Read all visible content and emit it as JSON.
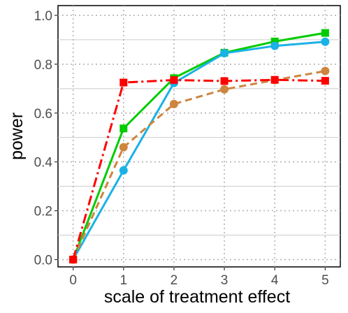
{
  "chart_data": {
    "type": "line",
    "title": "",
    "xlabel": "scale of treatment effect",
    "ylabel": "power",
    "x": [
      0,
      1,
      2,
      3,
      4,
      5
    ],
    "xlim": [
      -0.3,
      5.3
    ],
    "ylim": [
      -0.03,
      1.04
    ],
    "x_ticks": [
      "0",
      "1",
      "2",
      "3",
      "4",
      "5"
    ],
    "y_ticks": [
      "0.0",
      "0.2",
      "0.4",
      "0.6",
      "0.8",
      "1.0"
    ],
    "grid": true,
    "legend": "none",
    "series": [
      {
        "color": "#00cc00",
        "line_style": "solid",
        "marker": "square",
        "values": [
          0.0,
          0.537,
          0.743,
          0.847,
          0.893,
          0.928
        ]
      },
      {
        "color": "#1ab2e6",
        "line_style": "solid",
        "marker": "circle",
        "values": [
          0.0,
          0.365,
          0.723,
          0.845,
          0.875,
          0.892
        ]
      },
      {
        "color": "#cd853f",
        "line_style": "dashed",
        "marker": "circle",
        "values": [
          0.0,
          0.46,
          0.637,
          0.697,
          0.735,
          0.772
        ]
      },
      {
        "color": "#ff0000",
        "line_style": "dashdot",
        "marker": "square",
        "values": [
          0.0,
          0.725,
          0.735,
          0.731,
          0.736,
          0.732
        ]
      }
    ]
  }
}
